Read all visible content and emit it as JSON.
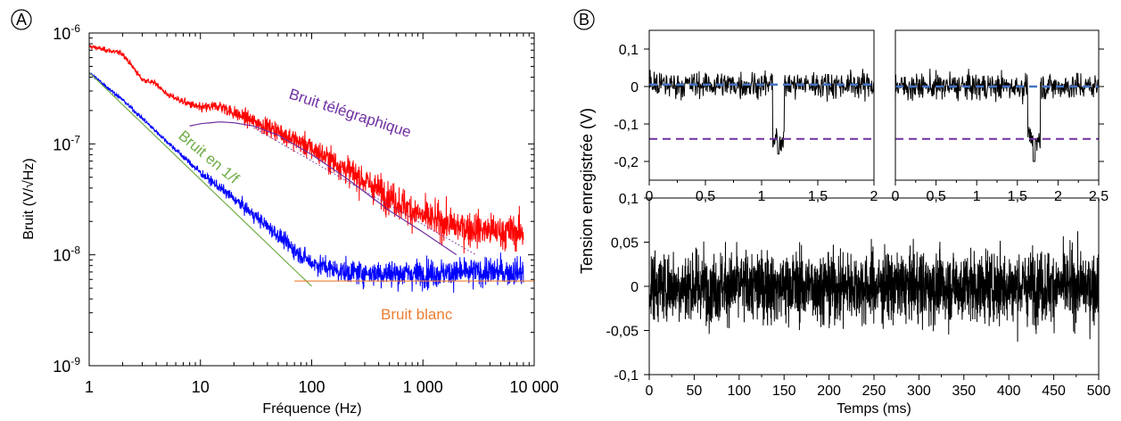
{
  "chart_data": [
    {
      "panel_label": "A",
      "type": "line",
      "xscale": "log",
      "yscale": "log",
      "xlim": [
        1,
        10000
      ],
      "ylim": [
        1e-09,
        1e-06
      ],
      "xlabel": "Fréquence (Hz)",
      "ylabel": "Bruit (V/√Hz)",
      "xticks": [
        {
          "value": 1,
          "label": "1"
        },
        {
          "value": 10,
          "label": "10"
        },
        {
          "value": 100,
          "label": "100"
        },
        {
          "value": 1000,
          "label": "1 000"
        },
        {
          "value": 10000,
          "label": "10 000"
        }
      ],
      "yticks": [
        {
          "value": 1e-09,
          "mantissa": "10",
          "exponent": "-9"
        },
        {
          "value": 1e-08,
          "mantissa": "10",
          "exponent": "-8"
        },
        {
          "value": 1e-07,
          "mantissa": "10",
          "exponent": "-7"
        },
        {
          "value": 1e-06,
          "mantissa": "10",
          "exponent": "-6"
        }
      ],
      "series": [
        {
          "color": "#ff0000",
          "x": [
            1,
            2,
            3,
            4,
            5,
            7,
            10,
            15,
            20,
            30,
            50,
            100,
            200,
            500,
            1000,
            2000,
            5000,
            8000
          ],
          "y": [
            7.6e-07,
            6.5e-07,
            3.8e-07,
            3.5e-07,
            2.8e-07,
            2.4e-07,
            2.1e-07,
            2.2e-07,
            1.9e-07,
            1.6e-07,
            1.3e-07,
            9e-08,
            6e-08,
            3.3e-08,
            2.2e-08,
            1.8e-08,
            1.6e-08,
            1.6e-08
          ]
        },
        {
          "color": "#0000ff",
          "x": [
            1,
            2,
            3,
            5,
            10,
            20,
            30,
            50,
            70,
            100,
            150,
            200,
            500,
            1000,
            2000,
            5000,
            8000
          ],
          "y": [
            4.4e-07,
            2.5e-07,
            1.7e-07,
            1.05e-07,
            5.5e-08,
            3.2e-08,
            2.3e-08,
            1.5e-08,
            1.1e-08,
            8.5e-09,
            7.5e-09,
            7e-09,
            6.8e-09,
            6.8e-09,
            6.9e-09,
            7e-09,
            7e-09
          ]
        },
        {
          "color": "#70ad47",
          "x": [
            1,
            100
          ],
          "y": [
            4.4e-07,
            5.2e-09
          ]
        },
        {
          "color": "#ed7d31",
          "x": [
            70,
            10000
          ],
          "y": [
            5.8e-09,
            5.8e-09
          ]
        },
        {
          "color": "#7030a0",
          "x": [
            8,
            10,
            15,
            20,
            30,
            50,
            100,
            200,
            500,
            1000,
            2000
          ],
          "y": [
            1.45e-07,
            1.52e-07,
            1.58e-07,
            1.55e-07,
            1.45e-07,
            1.2e-07,
            8e-08,
            5e-08,
            2.5e-08,
            1.6e-08,
            1e-08
          ]
        },
        {
          "color": "#7030a0",
          "dashed": true,
          "x": [
            30,
            3000
          ],
          "y": [
            1.4e-07,
            1e-08
          ]
        }
      ],
      "annotations": [
        {
          "text": "Bruit télégraphique",
          "color": "#7030a0"
        },
        {
          "text": "Bruit en 1/f",
          "color": "#70ad47"
        },
        {
          "text": "Bruit blanc",
          "color": "#ed7d31"
        }
      ]
    },
    {
      "panel_label": "B",
      "type": "line",
      "shared_ylabel": "Tension enregistrée (V)",
      "subplots": [
        {
          "name": "top-left",
          "xlim": [
            0,
            2
          ],
          "ylim": [
            -0.25,
            0.15
          ],
          "xticks": [
            {
              "value": 0,
              "label": "0"
            },
            {
              "value": 0.5,
              "label": "0,5"
            },
            {
              "value": 1,
              "label": "1"
            },
            {
              "value": 1.5,
              "label": "1,5"
            },
            {
              "value": 2,
              "label": "2"
            }
          ],
          "yticks": [
            {
              "value": 0.1,
              "label": "0,1"
            },
            {
              "value": 0,
              "label": "0"
            },
            {
              "value": -0.1,
              "label": "-0,1"
            },
            {
              "value": -0.2,
              "label": "-0,2"
            }
          ],
          "hlines": [
            {
              "y": 0.005,
              "color": "#4472c4"
            },
            {
              "y": -0.14,
              "color": "#7030a0"
            }
          ],
          "trace_color": "#000000",
          "dip": {
            "from": 1.1,
            "to": 1.2,
            "min": -0.18
          }
        },
        {
          "name": "top-right",
          "xlim": [
            0,
            2.5
          ],
          "ylim": [
            -0.25,
            0.15
          ],
          "xticks": [
            {
              "value": 0,
              "label": "0"
            },
            {
              "value": 0.5,
              "label": "0,5"
            },
            {
              "value": 1,
              "label": "1"
            },
            {
              "value": 1.5,
              "label": "1,5"
            },
            {
              "value": 2,
              "label": "2"
            },
            {
              "value": 2.5,
              "label": "2,5"
            }
          ],
          "hlines": [
            {
              "y": 0.0,
              "color": "#4472c4"
            },
            {
              "y": -0.14,
              "color": "#7030a0"
            }
          ],
          "trace_color": "#000000",
          "dip": {
            "from": 1.63,
            "to": 1.78,
            "min": -0.2
          }
        },
        {
          "name": "bottom",
          "xlim": [
            0,
            500
          ],
          "ylim": [
            -0.1,
            0.1
          ],
          "xlabel": "Temps (ms)",
          "xticks": [
            {
              "value": 0,
              "label": "0"
            },
            {
              "value": 50,
              "label": "50"
            },
            {
              "value": 100,
              "label": "100"
            },
            {
              "value": 150,
              "label": "150"
            },
            {
              "value": 200,
              "label": "200"
            },
            {
              "value": 250,
              "label": "250"
            },
            {
              "value": 300,
              "label": "300"
            },
            {
              "value": 350,
              "label": "350"
            },
            {
              "value": 400,
              "label": "400"
            },
            {
              "value": 450,
              "label": "450"
            },
            {
              "value": 500,
              "label": "500"
            }
          ],
          "yticks": [
            {
              "value": 0.1,
              "label": "0,1"
            },
            {
              "value": 0.05,
              "label": "0,05"
            },
            {
              "value": 0,
              "label": "0"
            },
            {
              "value": -0.05,
              "label": "-0,05"
            },
            {
              "value": -0.1,
              "label": "-0,1"
            }
          ],
          "trace_color": "#000000"
        }
      ]
    }
  ]
}
